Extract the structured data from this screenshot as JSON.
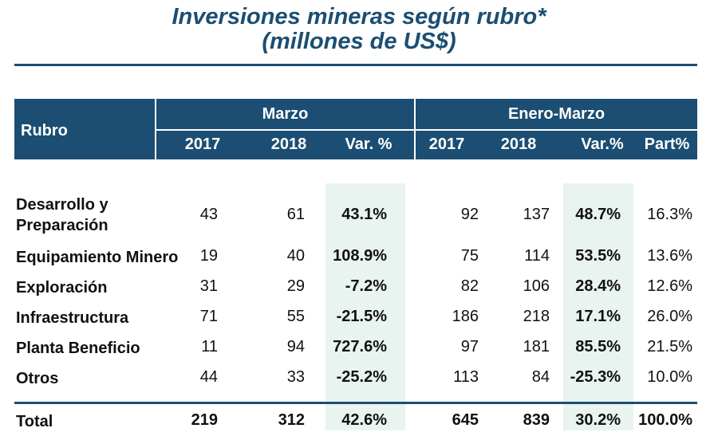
{
  "title_line1": "Inversiones mineras según rubro*",
  "title_line2": "(millones de US$)",
  "header": {
    "rubro": "Rubro",
    "marzo": "Marzo",
    "enero_marzo": "Enero-Marzo",
    "m2017": "2017",
    "m2018": "2018",
    "mvar": "Var. %",
    "e2017": "2017",
    "e2018": "2018",
    "evar": "Var.%",
    "part": "Part%"
  },
  "rows": [
    {
      "rubro1": "Desarrollo y",
      "rubro2": "Preparación",
      "m2017": "43",
      "m2018": "61",
      "mvar": "43.1%",
      "e2017": "92",
      "e2018": "137",
      "evar": "48.7%",
      "part": "16.3%"
    },
    {
      "rubro1": "Equipamiento Minero",
      "m2017": "19",
      "m2018": "40",
      "mvar": "108.9%",
      "e2017": "75",
      "e2018": "114",
      "evar": "53.5%",
      "part": "13.6%"
    },
    {
      "rubro1": "Exploración",
      "m2017": "31",
      "m2018": "29",
      "mvar": "-7.2%",
      "e2017": "82",
      "e2018": "106",
      "evar": "28.4%",
      "part": "12.6%"
    },
    {
      "rubro1": "Infraestructura",
      "m2017": "71",
      "m2018": "55",
      "mvar": "-21.5%",
      "e2017": "186",
      "e2018": "218",
      "evar": "17.1%",
      "part": "26.0%"
    },
    {
      "rubro1": "Planta Beneficio",
      "m2017": "11",
      "m2018": "94",
      "mvar": "727.6%",
      "e2017": "97",
      "e2018": "181",
      "evar": "85.5%",
      "part": "21.5%"
    },
    {
      "rubro1": "Otros",
      "m2017": "44",
      "m2018": "33",
      "mvar": "-25.2%",
      "e2017": "113",
      "e2018": "84",
      "evar": "-25.3%",
      "part": "10.0%"
    }
  ],
  "total": {
    "rubro": "Total",
    "m2017": "219",
    "m2018": "312",
    "mvar": "42.6%",
    "e2017": "645",
    "e2018": "839",
    "evar": "30.2%",
    "part": "100.0%"
  }
}
